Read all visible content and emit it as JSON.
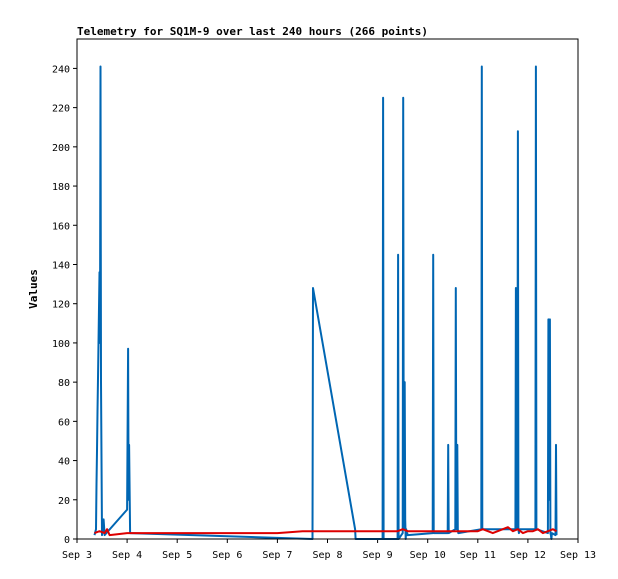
{
  "chart_data": {
    "type": "line",
    "title": "Telemetry for SQ1M-9 over last 240 hours (266 points)",
    "xlabel": "",
    "ylabel": "Values",
    "x_ticks": [
      "Sep 3",
      "Sep 4",
      "Sep 5",
      "Sep 6",
      "Sep 7",
      "Sep 8",
      "Sep 9",
      "Sep 10",
      "Sep 11",
      "Sep 12",
      "Sep 13"
    ],
    "y_ticks": [
      0,
      20,
      40,
      60,
      80,
      100,
      120,
      140,
      160,
      180,
      200,
      220,
      240
    ],
    "xlim": [
      "Sep 3",
      "Sep 13"
    ],
    "ylim": [
      0,
      255
    ],
    "grid": false,
    "series": [
      {
        "color": "#0066b3",
        "x": [
          3.35,
          3.38,
          3.39,
          3.4,
          3.41,
          3.42,
          3.43,
          3.44,
          3.45,
          3.46,
          3.47,
          3.48,
          3.5,
          3.51,
          3.52,
          3.53,
          3.55,
          4.0,
          4.02,
          4.03,
          4.04,
          4.06,
          7.7,
          7.71,
          8.55,
          8.56,
          9.1,
          9.11,
          9.12,
          9.4,
          9.41,
          9.42,
          9.5,
          9.51,
          9.52,
          9.53,
          9.54,
          9.55,
          9.56,
          9.57,
          9.58,
          9.59,
          9.6,
          10.1,
          10.11,
          10.12,
          10.4,
          10.41,
          10.42,
          10.55,
          10.56,
          10.57,
          10.58,
          10.59,
          10.6,
          10.61,
          11.07,
          11.08,
          11.09,
          11.75,
          11.76,
          11.77,
          11.78,
          11.79,
          11.8,
          11.81,
          11.82,
          11.83,
          11.84,
          12.15,
          12.16,
          12.17,
          12.4,
          12.41,
          12.42,
          12.43,
          12.44,
          12.45,
          12.46,
          12.47,
          12.48,
          12.55,
          12.56,
          12.57
        ],
        "y": [
          2,
          5,
          28,
          45,
          65,
          82,
          100,
          118,
          136,
          100,
          241,
          80,
          2,
          5,
          8,
          10,
          2,
          15,
          97,
          20,
          48,
          3,
          0,
          128,
          5,
          0,
          0,
          225,
          0,
          0,
          145,
          0,
          3,
          225,
          40,
          5,
          80,
          10,
          0,
          5,
          2,
          3,
          2,
          3,
          145,
          3,
          3,
          48,
          3,
          5,
          128,
          15,
          5,
          48,
          5,
          3,
          5,
          241,
          5,
          5,
          128,
          40,
          105,
          5,
          208,
          5,
          3,
          4,
          5,
          5,
          241,
          5,
          3,
          112,
          20,
          93,
          112,
          3,
          2,
          0,
          3,
          2,
          48,
          2
        ]
      },
      {
        "color": "#dd0000",
        "x": [
          3.35,
          3.45,
          3.55,
          3.6,
          3.65,
          4.0,
          4.5,
          5.0,
          5.5,
          6.0,
          6.5,
          7.0,
          7.5,
          8.0,
          8.5,
          9.0,
          9.2,
          9.4,
          9.5,
          9.6,
          9.8,
          10.0,
          10.2,
          10.4,
          10.6,
          10.8,
          11.0,
          11.1,
          11.3,
          11.5,
          11.6,
          11.7,
          11.8,
          11.9,
          12.0,
          12.1,
          12.2,
          12.3,
          12.4,
          12.5,
          12.57
        ],
        "y": [
          3,
          4,
          3,
          5,
          2,
          3,
          3,
          3,
          3,
          3,
          3,
          3,
          4,
          4,
          4,
          4,
          4,
          4,
          5,
          4,
          4,
          4,
          4,
          4,
          4,
          4,
          4,
          5,
          3,
          5,
          6,
          4,
          5,
          3,
          4,
          4,
          5,
          3,
          4,
          5,
          4
        ]
      }
    ]
  }
}
